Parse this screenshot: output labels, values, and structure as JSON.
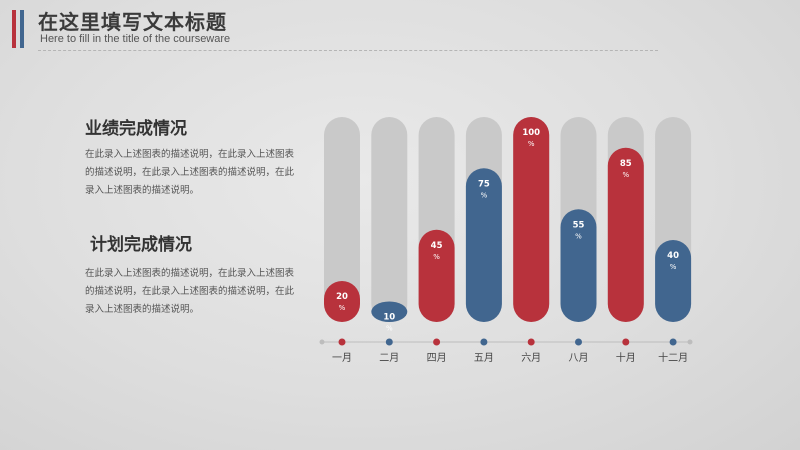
{
  "header": {
    "title": "在这里填写文本标题",
    "subtitle": "Here to fill in the title of the courseware"
  },
  "sections": [
    {
      "heading": "业绩完成情况",
      "text": "在此录入上述图表的描述说明，在此录入上述图表的描述说明，在此录入上述图表的描述说明，在此录入上述图表的描述说明。"
    },
    {
      "heading": "计划完成情况",
      "text": "在此录入上述图表的描述说明，在此录入上述图表的描述说明，在此录入上述图表的描述说明，在此录入上述图表的描述说明。"
    }
  ],
  "colors": {
    "red": "#b8323c",
    "blue": "#41668f",
    "track": "#c9c9c9"
  },
  "chart_data": {
    "type": "bar",
    "categories": [
      "一月",
      "二月",
      "四月",
      "五月",
      "六月",
      "八月",
      "十月",
      "十二月"
    ],
    "values": [
      20,
      10,
      45,
      75,
      100,
      55,
      85,
      40
    ],
    "value_suffix": "%",
    "bar_colors": [
      "red",
      "blue",
      "red",
      "blue",
      "red",
      "blue",
      "red",
      "blue"
    ],
    "ylim": [
      0,
      100
    ],
    "grid": false,
    "legend": "none"
  }
}
